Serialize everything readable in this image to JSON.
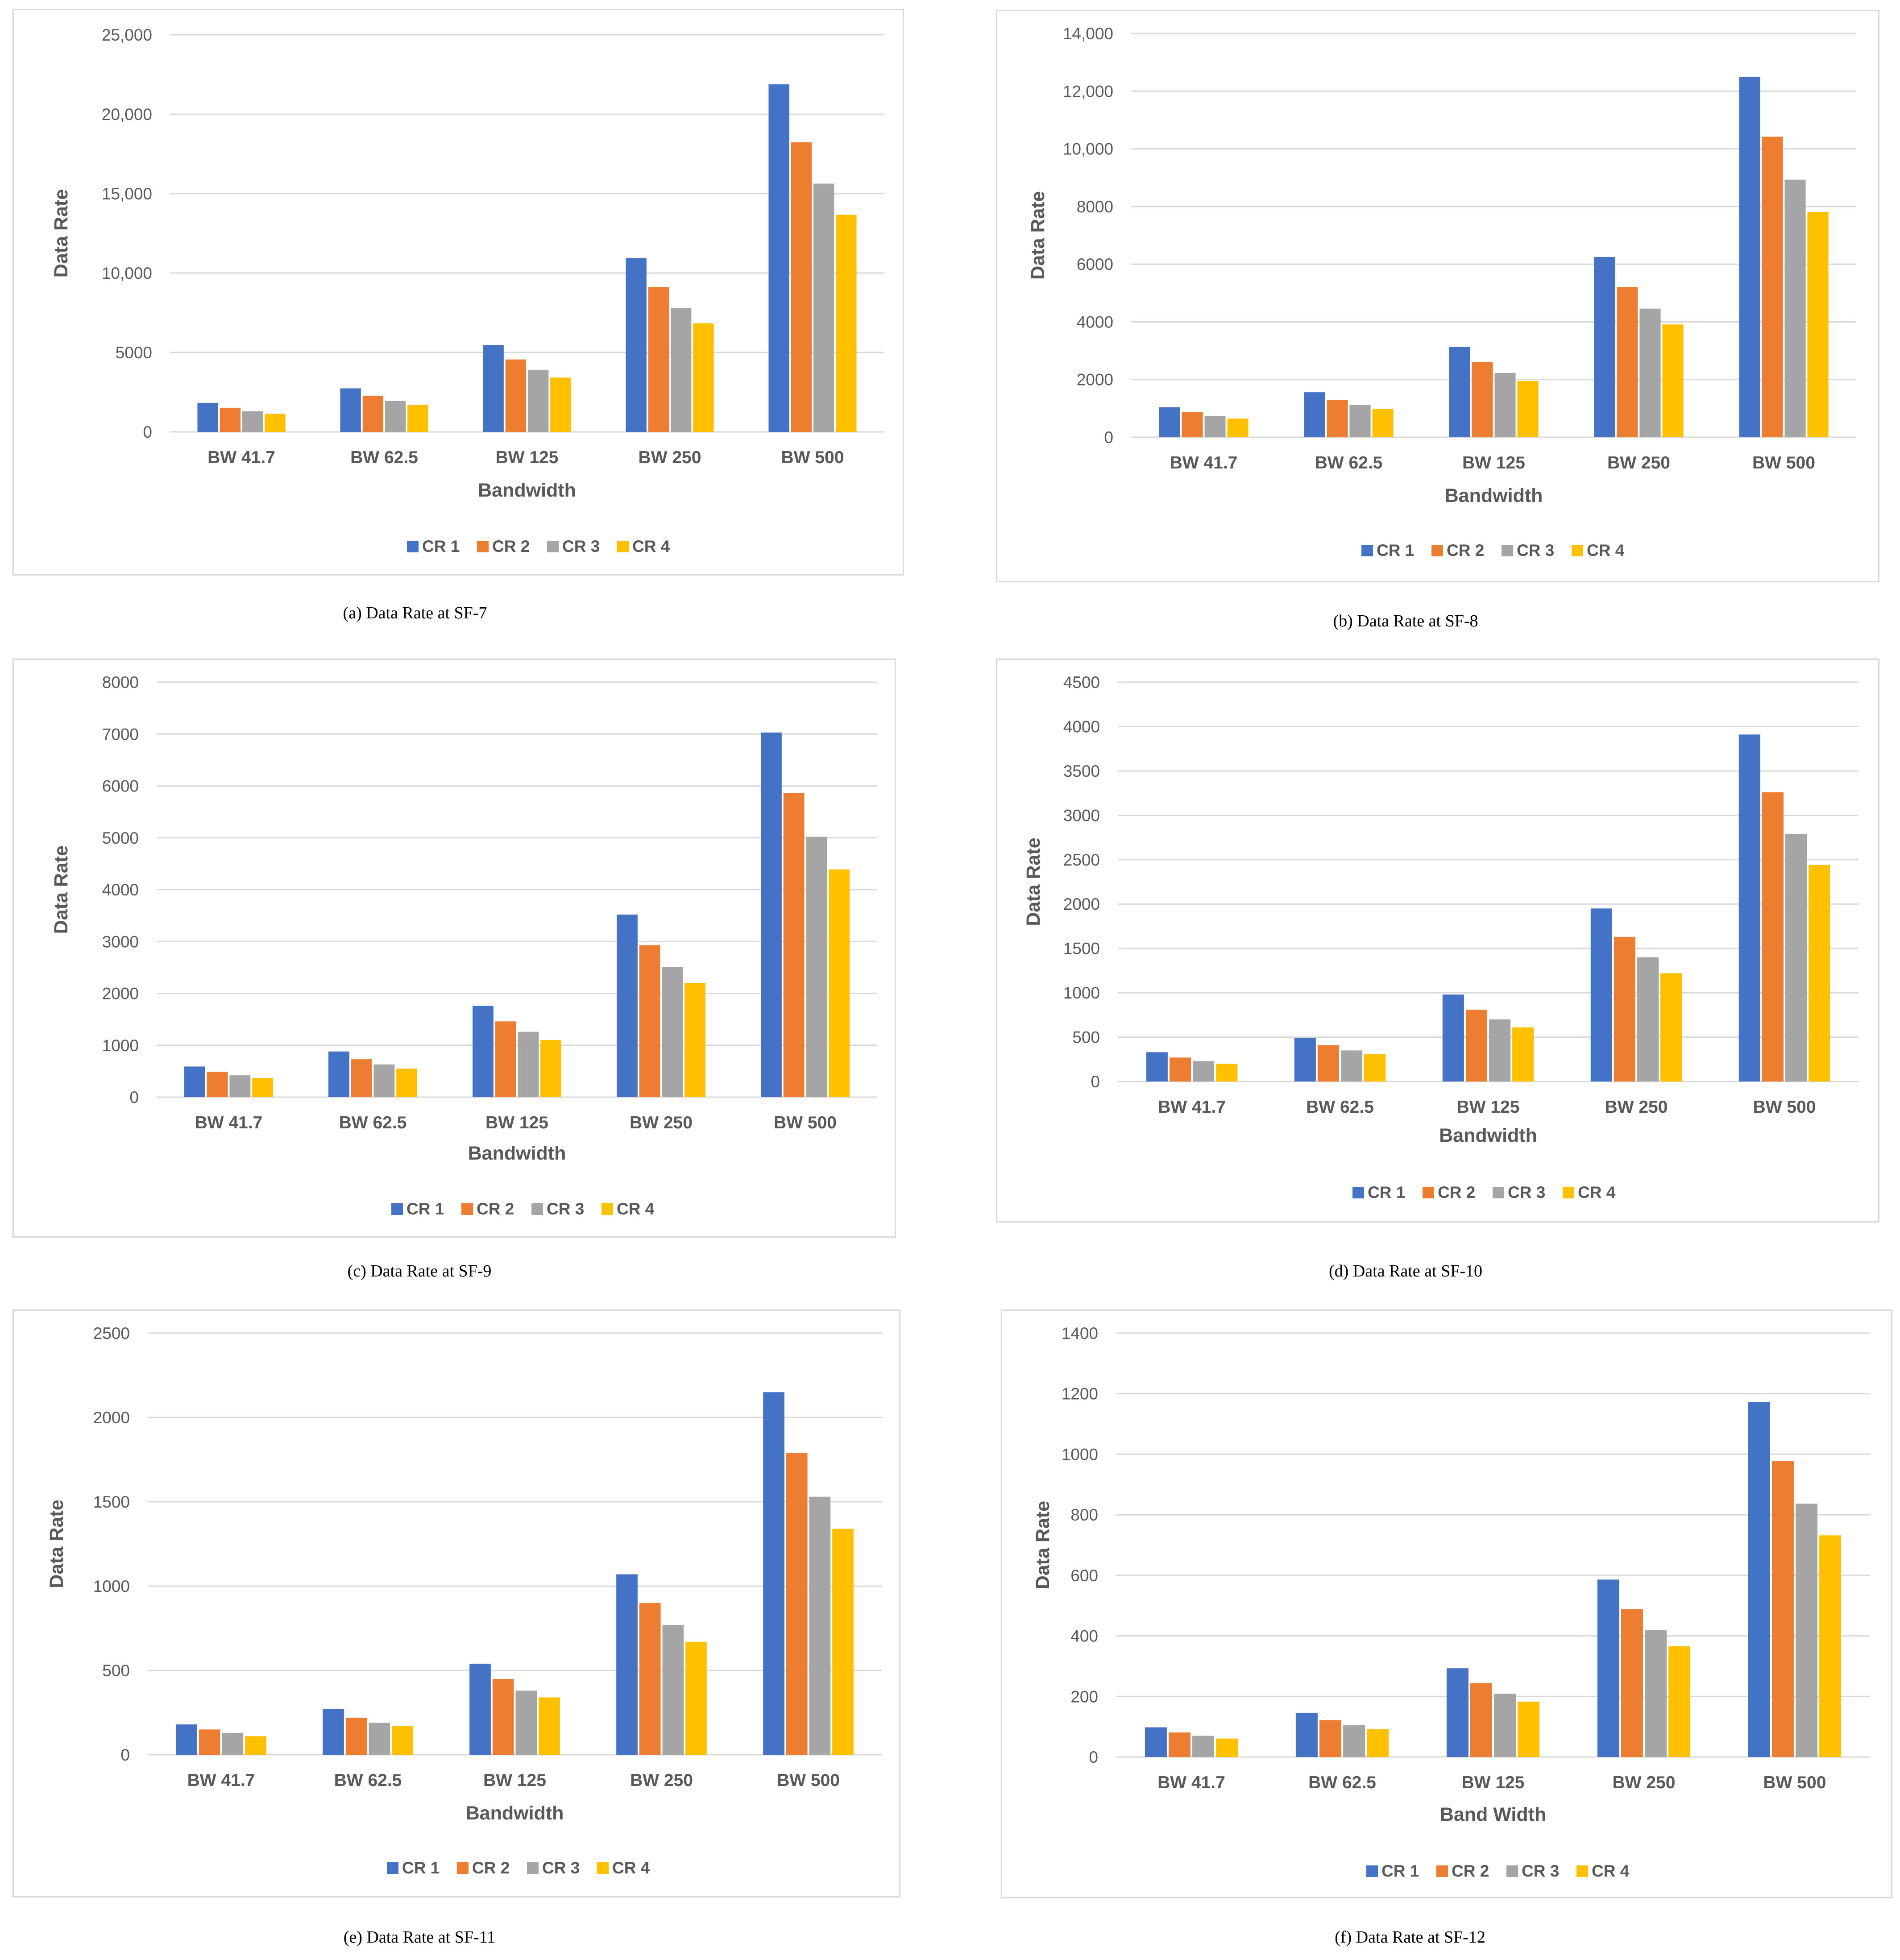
{
  "colors": {
    "CR 1": "#4472c4",
    "CR 2": "#ed7d31",
    "CR 3": "#a5a5a5",
    "CR 4": "#ffc000",
    "grid": "#d9d9d9"
  },
  "chart_data": [
    {
      "type": "bar",
      "caption": "(a) Data Rate at SF-7",
      "categories": [
        "BW 41.7",
        "BW 62.5",
        "BW 125",
        "BW 250",
        "BW 500"
      ],
      "series": [
        {
          "name": "CR 1",
          "values": [
            1830,
            2740,
            5470,
            10940,
            21880
          ]
        },
        {
          "name": "CR 2",
          "values": [
            1520,
            2280,
            4560,
            9120,
            18230
          ]
        },
        {
          "name": "CR 3",
          "values": [
            1300,
            1950,
            3910,
            7810,
            15630
          ]
        },
        {
          "name": "CR 4",
          "values": [
            1140,
            1710,
            3420,
            6840,
            13670
          ]
        }
      ],
      "yticks": [
        "0",
        "5000",
        "10,000",
        "15,000",
        "20,000",
        "25,000"
      ],
      "ylim": [
        0,
        25000
      ],
      "xlabel": "Bandwidth",
      "ylabel": "Data Rate",
      "legend": "bottom"
    },
    {
      "type": "bar",
      "caption": "(b) Data Rate at SF-8",
      "categories": [
        "BW 41.7",
        "BW 62.5",
        "BW 125",
        "BW 250",
        "BW 500"
      ],
      "series": [
        {
          "name": "CR 1",
          "values": [
            1040,
            1560,
            3125,
            6250,
            12500
          ]
        },
        {
          "name": "CR 2",
          "values": [
            870,
            1300,
            2600,
            5210,
            10420
          ]
        },
        {
          "name": "CR 3",
          "values": [
            740,
            1120,
            2230,
            4460,
            8930
          ]
        },
        {
          "name": "CR 4",
          "values": [
            650,
            980,
            1950,
            3910,
            7810
          ]
        }
      ],
      "yticks": [
        "0",
        "2000",
        "4000",
        "6000",
        "8000",
        "10,000",
        "12,000",
        "14,000"
      ],
      "ylim": [
        0,
        14000
      ],
      "xlabel": "Bandwidth",
      "ylabel": "Data Rate",
      "legend": "bottom"
    },
    {
      "type": "bar",
      "caption": "(c) Data Rate at SF-9",
      "categories": [
        "BW 41.7",
        "BW 62.5",
        "BW 125",
        "BW 250",
        "BW 500"
      ],
      "series": [
        {
          "name": "CR 1",
          "values": [
            590,
            880,
            1760,
            3520,
            7030
          ]
        },
        {
          "name": "CR 2",
          "values": [
            490,
            730,
            1460,
            2930,
            5860
          ]
        },
        {
          "name": "CR 3",
          "values": [
            420,
            630,
            1260,
            2510,
            5020
          ]
        },
        {
          "name": "CR 4",
          "values": [
            370,
            550,
            1100,
            2200,
            4390
          ]
        }
      ],
      "yticks": [
        "0",
        "1000",
        "2000",
        "3000",
        "4000",
        "5000",
        "6000",
        "7000",
        "8000"
      ],
      "ylim": [
        0,
        8000
      ],
      "xlabel": "Bandwidth",
      "ylabel": "Data Rate",
      "legend": "bottom"
    },
    {
      "type": "bar",
      "caption": "(d) Data Rate at SF-10",
      "categories": [
        "BW 41.7",
        "BW 62.5",
        "BW 125",
        "BW 250",
        "BW 500"
      ],
      "series": [
        {
          "name": "CR 1",
          "values": [
            330,
            490,
            980,
            1950,
            3910
          ]
        },
        {
          "name": "CR 2",
          "values": [
            270,
            410,
            810,
            1630,
            3260
          ]
        },
        {
          "name": "CR 3",
          "values": [
            230,
            350,
            700,
            1400,
            2790
          ]
        },
        {
          "name": "CR 4",
          "values": [
            200,
            310,
            610,
            1220,
            2440
          ]
        }
      ],
      "yticks": [
        "0",
        "500",
        "1000",
        "1500",
        "2000",
        "2500",
        "3000",
        "3500",
        "4000",
        "4500"
      ],
      "ylim": [
        0,
        4500
      ],
      "xlabel": "Bandwidth",
      "ylabel": "Data Rate",
      "legend": "bottom"
    },
    {
      "type": "bar",
      "caption": "(e) Data Rate at SF-11",
      "categories": [
        "BW 41.7",
        "BW 62.5",
        "BW 125",
        "BW 250",
        "BW 500"
      ],
      "series": [
        {
          "name": "CR 1",
          "values": [
            180,
            270,
            540,
            1070,
            2150
          ]
        },
        {
          "name": "CR 2",
          "values": [
            150,
            220,
            450,
            900,
            1790
          ]
        },
        {
          "name": "CR 3",
          "values": [
            130,
            190,
            380,
            770,
            1530
          ]
        },
        {
          "name": "CR 4",
          "values": [
            110,
            170,
            340,
            670,
            1340
          ]
        }
      ],
      "yticks": [
        "0",
        "500",
        "1000",
        "1500",
        "2000",
        "2500"
      ],
      "ylim": [
        0,
        2500
      ],
      "xlabel": "Bandwidth",
      "ylabel": "Data Rate",
      "legend": "bottom"
    },
    {
      "type": "bar",
      "caption": "(f) Data Rate at SF-12",
      "categories": [
        "BW 41.7",
        "BW 62.5",
        "BW 125",
        "BW 250",
        "BW 500"
      ],
      "series": [
        {
          "name": "CR 1",
          "values": [
            98,
            146,
            293,
            586,
            1172
          ]
        },
        {
          "name": "CR 2",
          "values": [
            81,
            122,
            244,
            488,
            977
          ]
        },
        {
          "name": "CR 3",
          "values": [
            70,
            105,
            209,
            419,
            837
          ]
        },
        {
          "name": "CR 4",
          "values": [
            61,
            92,
            183,
            366,
            732
          ]
        }
      ],
      "yticks": [
        "0",
        "200",
        "400",
        "600",
        "800",
        "1000",
        "1200",
        "1400"
      ],
      "ylim": [
        0,
        1400
      ],
      "xlabel": "Band Width",
      "ylabel": "Data Rate",
      "legend": "bottom"
    }
  ]
}
